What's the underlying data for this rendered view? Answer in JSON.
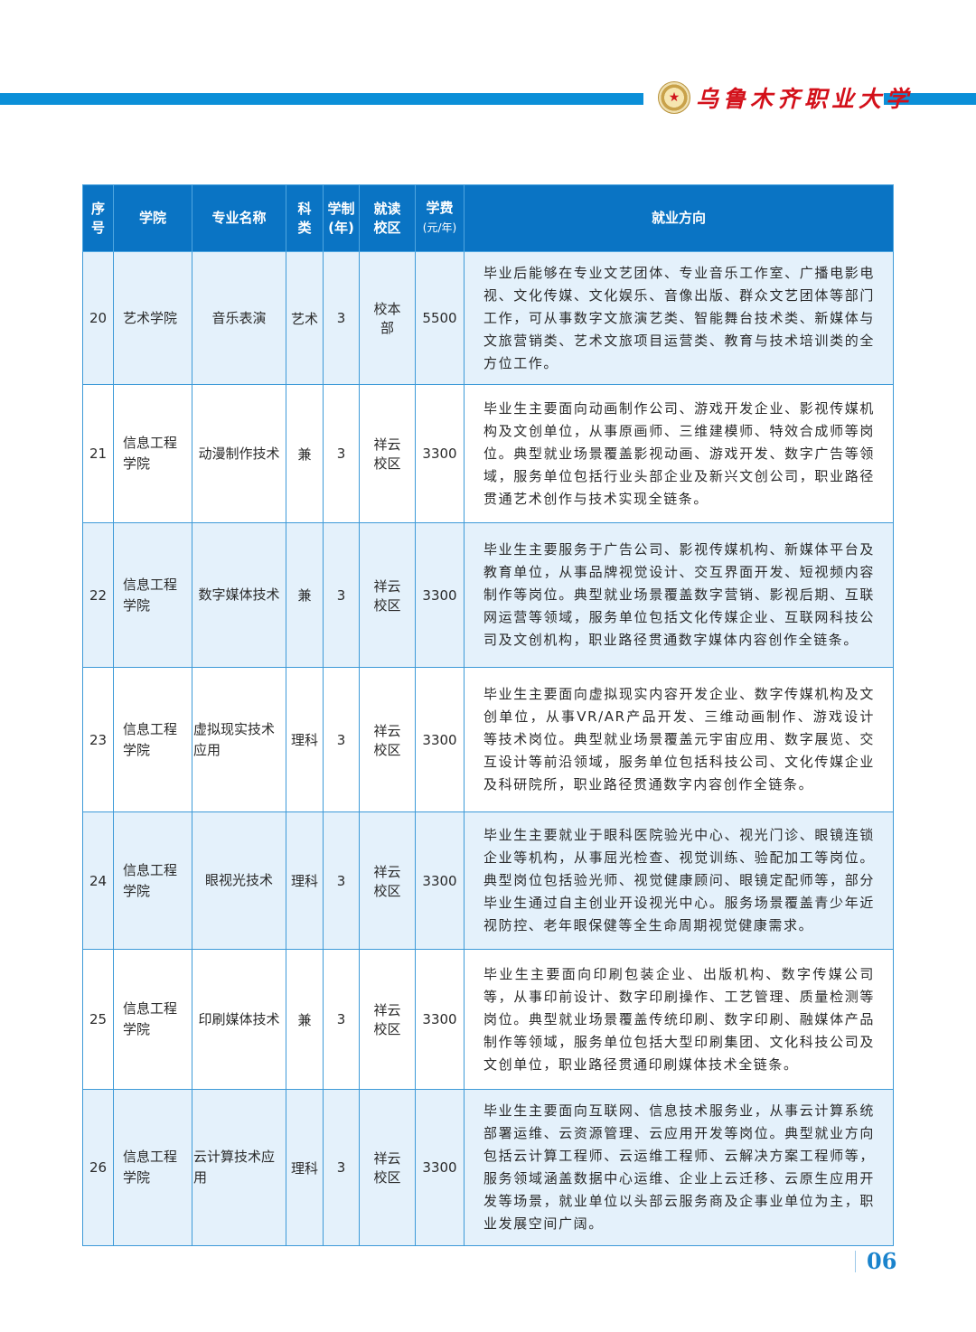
{
  "header": {
    "school_name": "乌鲁木齐职业大学",
    "logo_icon": "school-seal",
    "accent": "#0b8fd8"
  },
  "table": {
    "headers": {
      "seq": "序号",
      "college": "学院",
      "major": "专业名称",
      "category": "科类",
      "years": "学制(年)",
      "campus": "就读校区",
      "fee": "学费",
      "fee_unit": "(元/年)",
      "career": "就业方向"
    },
    "rows": [
      {
        "seq": "20",
        "college": "艺术学院",
        "major": "音乐表演",
        "category": "艺术",
        "years": "3",
        "campus": "校本部",
        "fee": "5500",
        "career": "毕业后能够在专业文艺团体、专业音乐工作室、广播电影电视、文化传媒、文化娱乐、音像出版、群众文艺团体等部门工作，可从事数字文旅演艺类、智能舞台技术类、新媒体与文旅营销类、艺术文旅项目运营类、教育与技术培训类的全方位工作。"
      },
      {
        "seq": "21",
        "college": "信息工程学院",
        "major": "动漫制作技术",
        "category": "兼",
        "years": "3",
        "campus": "祥云校区",
        "fee": "3300",
        "career": "毕业生主要面向动画制作公司、游戏开发企业、影视传媒机构及文创单位，从事原画师、三维建模师、特效合成师等岗位。典型就业场景覆盖影视动画、游戏开发、数字广告等领域，服务单位包括行业头部企业及新兴文创公司，职业路径贯通艺术创作与技术实现全链条。"
      },
      {
        "seq": "22",
        "college": "信息工程学院",
        "major": "数字媒体技术",
        "category": "兼",
        "years": "3",
        "campus": "祥云校区",
        "fee": "3300",
        "career": "毕业生主要服务于广告公司、影视传媒机构、新媒体平台及教育单位，从事品牌视觉设计、交互界面开发、短视频内容制作等岗位。典型就业场景覆盖数字营销、影视后期、互联网运营等领域，服务单位包括文化传媒企业、互联网科技公司及文创机构，职业路径贯通数字媒体内容创作全链条。"
      },
      {
        "seq": "23",
        "college": "信息工程学院",
        "major": "虚拟现实技术应用",
        "category": "理科",
        "years": "3",
        "campus": "祥云校区",
        "fee": "3300",
        "career": "毕业生主要面向虚拟现实内容开发企业、数字传媒机构及文创单位，从事VR/AR产品开发、三维动画制作、游戏设计等技术岗位。典型就业场景覆盖元宇宙应用、数字展览、交互设计等前沿领域，服务单位包括科技公司、文化传媒企业及科研院所，职业路径贯通数字内容创作全链条。"
      },
      {
        "seq": "24",
        "college": "信息工程学院",
        "major": "眼视光技术",
        "category": "理科",
        "years": "3",
        "campus": "祥云校区",
        "fee": "3300",
        "career": "毕业生主要就业于眼科医院验光中心、视光门诊、眼镜连锁企业等机构，从事屈光检查、视觉训练、验配加工等岗位。典型岗位包括验光师、视觉健康顾问、眼镜定配师等，部分毕业生通过自主创业开设视光中心。服务场景覆盖青少年近视防控、老年眼保健等全生命周期视觉健康需求。"
      },
      {
        "seq": "25",
        "college": "信息工程学院",
        "major": "印刷媒体技术",
        "category": "兼",
        "years": "3",
        "campus": "祥云校区",
        "fee": "3300",
        "career": "毕业生主要面向印刷包装企业、出版机构、数字传媒公司等，从事印前设计、数字印刷操作、工艺管理、质量检测等岗位。典型就业场景覆盖传统印刷、数字印刷、融媒体产品制作等领域，服务单位包括大型印刷集团、文化科技公司及文创单位，职业路径贯通印刷媒体技术全链条。"
      },
      {
        "seq": "26",
        "college": "信息工程学院",
        "major": "云计算技术应用",
        "category": "理科",
        "years": "3",
        "campus": "祥云校区",
        "fee": "3300",
        "career": "毕业生主要面向互联网、信息技术服务业，从事云计算系统部署运维、云资源管理、云应用开发等岗位。典型就业方向包括云计算工程师、云运维工程师、云解决方案工程师等，服务领域涵盖数据中心运维、企业上云迁移、云原生应用开发等场景，就业单位以头部云服务商及企事业单位为主，职业发展空间广阔。"
      }
    ]
  },
  "footer": {
    "page_number": "06"
  }
}
